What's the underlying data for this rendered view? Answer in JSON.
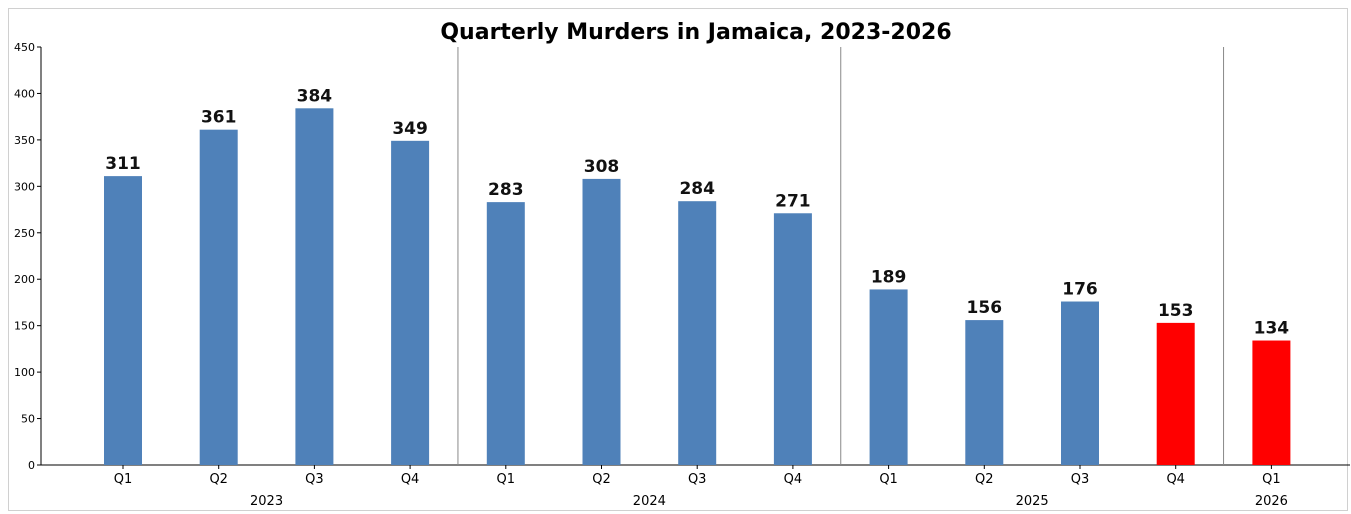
{
  "chart_data": {
    "type": "bar",
    "title": "Quarterly Murders in Jamaica, 2023-2026",
    "xlabel": "",
    "ylabel": "",
    "ylim": [
      0,
      450
    ],
    "yticks": [
      0,
      50,
      100,
      150,
      200,
      250,
      300,
      350,
      400,
      450
    ],
    "grid": false,
    "categories": [
      "Q1",
      "Q2",
      "Q3",
      "Q4",
      "Q1",
      "Q2",
      "Q3",
      "Q4",
      "Q1",
      "Q2",
      "Q3",
      "Q4",
      "Q1"
    ],
    "groups": [
      {
        "label": "2023",
        "count": 4
      },
      {
        "label": "2024",
        "count": 4
      },
      {
        "label": "2025",
        "count": 4
      },
      {
        "label": "2026",
        "count": 1
      }
    ],
    "values": [
      311,
      361,
      384,
      349,
      283,
      308,
      284,
      271,
      189,
      156,
      176,
      153,
      134
    ],
    "colors": [
      "#4f81b9",
      "#4f81b9",
      "#4f81b9",
      "#4f81b9",
      "#4f81b9",
      "#4f81b9",
      "#4f81b9",
      "#4f81b9",
      "#4f81b9",
      "#4f81b9",
      "#4f81b9",
      "#ff0000",
      "#ff0000"
    ],
    "colors_legend": {
      "default": "#4f81b9",
      "highlight": "#ff0000"
    }
  }
}
